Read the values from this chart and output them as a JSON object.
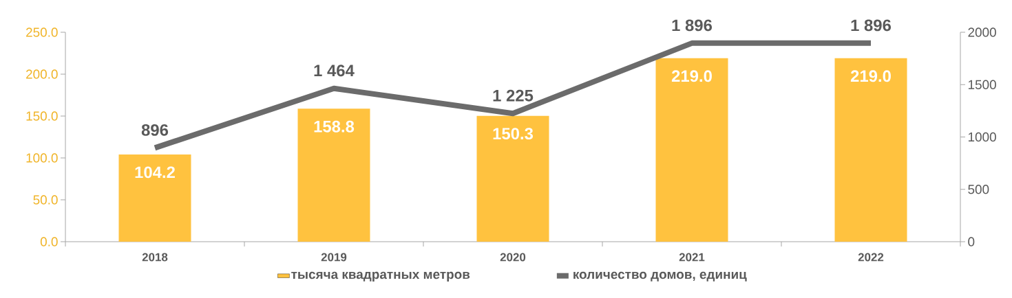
{
  "chart_data": {
    "type": "bar",
    "categories": [
      "2018",
      "2019",
      "2020",
      "2021",
      "2022"
    ],
    "series": [
      {
        "name": "тысяча квадратных метров",
        "color": "#ffc23f",
        "values": [
          104.2,
          158.8,
          150.3,
          219.0,
          219.0
        ],
        "value_labels": [
          "104.2",
          "158.8",
          "150.3",
          "219.0",
          "219.0"
        ]
      },
      {
        "name": "количество домов, единиц",
        "type": "line",
        "axis": "y2",
        "color": "#6b6b6b",
        "values": [
          896,
          1464,
          1225,
          1896,
          1896
        ],
        "value_labels": [
          "896",
          "1 464",
          "1 225",
          "1 896",
          "1 896"
        ]
      }
    ],
    "ylim": [
      0,
      250
    ],
    "yticks": [
      {
        "value": 0,
        "label": "0.0"
      },
      {
        "value": 50,
        "label": "50.0"
      },
      {
        "value": 100,
        "label": "100.0"
      },
      {
        "value": 150,
        "label": "150.0"
      },
      {
        "value": 200,
        "label": "200.0"
      },
      {
        "value": 250,
        "label": "250.0"
      }
    ],
    "y2lim": [
      0,
      2000
    ],
    "y2ticks": [
      0,
      500,
      1000,
      1500,
      2000
    ],
    "legend": "bottom",
    "grid": false,
    "marker": "none"
  }
}
